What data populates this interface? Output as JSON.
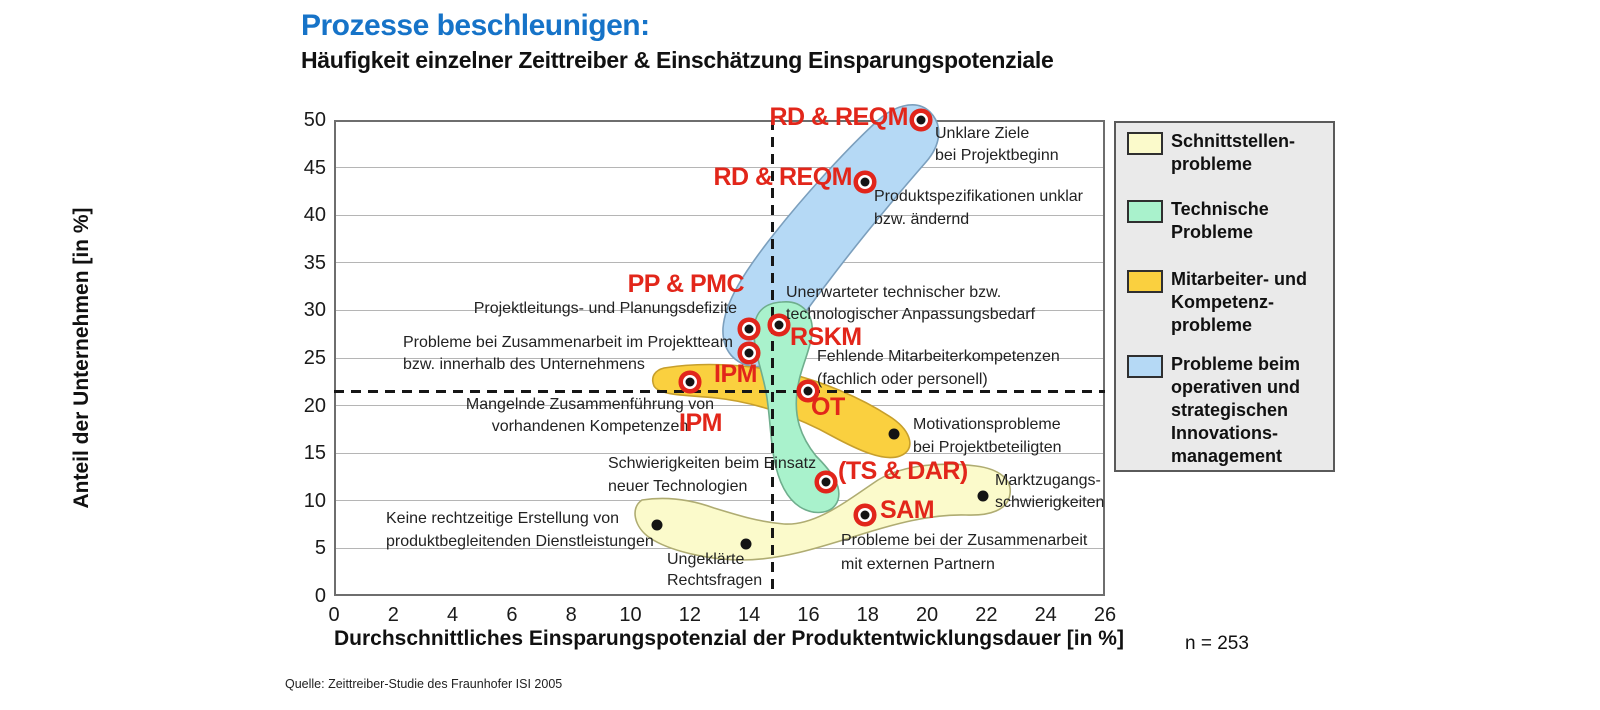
{
  "page": {
    "title_line1": "Prozesse beschleunigen:",
    "title_line2": "Häufigkeit einzelner Zeittreiber & Einschätzung Einsparungspotenziale",
    "sample_size": "n = 253",
    "source": "Quelle: Zeittreiber-Studie des Fraunhofer ISI 2005"
  },
  "colors": {
    "title_blue": "#1673c8",
    "label_red": "#e2261a",
    "marker_ring_red": "#e1251b",
    "grid": "#b5b5b5",
    "frame": "#6e6e6e",
    "dashed_line": "#161616",
    "legend_bg": "#eaeaea",
    "legend_border": "#5a5a5a"
  },
  "chart_data": {
    "type": "scatter",
    "title": "Häufigkeit einzelner Zeittreiber & Einschätzung Einsparungspotenziale",
    "xlabel": "Durchschnittliches Einsparungspotenzial der Produktentwicklungsdauer [in %]",
    "ylabel": "Anteil der Unternehmen [in %]",
    "xlim": [
      0,
      26
    ],
    "ylim": [
      0,
      50
    ],
    "xticks": [
      0,
      2,
      4,
      6,
      8,
      10,
      12,
      14,
      16,
      18,
      20,
      22,
      24,
      26
    ],
    "yticks": [
      0,
      5,
      10,
      15,
      20,
      25,
      30,
      35,
      40,
      45,
      50
    ],
    "grid": "horizontal-only",
    "legend_position": "right",
    "reference_lines": {
      "horizontal_y": 21.5,
      "vertical_x": 14.8,
      "style": "dashed"
    },
    "groups": [
      {
        "id": "schnittstellen",
        "label_lines": [
          "Schnittstellen-",
          "probleme"
        ],
        "fill": "#fbfacb",
        "stroke": "#afac72"
      },
      {
        "id": "technisch",
        "label_lines": [
          "Technische",
          "Probleme"
        ],
        "fill": "#a9f2cc",
        "stroke": "#6fae8d"
      },
      {
        "id": "kompetenz",
        "label_lines": [
          "Mitarbeiter- und",
          "Kompetenz-",
          "probleme"
        ],
        "fill": "#fad03f",
        "stroke": "#c79f2c"
      },
      {
        "id": "innovation",
        "label_lines": [
          "Probleme beim",
          "operativen und",
          "strategischen",
          "Innovations-",
          "management"
        ],
        "fill": "#b5d9f5",
        "stroke": "#7b9fbd"
      }
    ],
    "points": [
      {
        "id": "unklare_ziele",
        "x": 19.8,
        "y": 50,
        "group": "innovation",
        "marker": "ring",
        "cmmi": "RD & REQM",
        "text_lines": [
          "Unklare Ziele",
          "bei Projektbeginn"
        ]
      },
      {
        "id": "produktspez",
        "x": 17.9,
        "y": 43.5,
        "group": "innovation",
        "marker": "ring",
        "cmmi": "RD & REQM",
        "text_lines": [
          "Produktspezifikationen unklar",
          "bzw. ändernd"
        ]
      },
      {
        "id": "pp_pmc",
        "x": 14,
        "y": 28,
        "group": "innovation",
        "marker": "ring",
        "cmmi": "PP & PMC",
        "text_lines": [
          "Projektleitungs- und Planungsdefizite"
        ]
      },
      {
        "id": "rskm",
        "x": 15,
        "y": 28.5,
        "group": "technisch",
        "marker": "ring",
        "cmmi": "RSKM",
        "text_lines": [
          "Unerwarteter technischer bzw.",
          "technologischer Anpassungsbedarf"
        ]
      },
      {
        "id": "ipm_team",
        "x": 14,
        "y": 25.5,
        "group": "innovation",
        "marker": "ring",
        "cmmi": "IPM",
        "text_lines": [
          "Probleme bei Zusammenarbeit im Projektteam",
          "bzw. innerhalb des Unternehmens"
        ]
      },
      {
        "id": "ipm_kompetenzen",
        "x": 12,
        "y": 22.5,
        "group": "kompetenz",
        "marker": "ring",
        "cmmi": "IPM",
        "text_lines": [
          "Mangelnde Zusammenführung von",
          "vorhandenen Kompetenzen"
        ]
      },
      {
        "id": "ot",
        "x": 16,
        "y": 21.5,
        "group": "kompetenz",
        "marker": "ring",
        "cmmi": "OT",
        "text_lines": [
          "Fehlende Mitarbeiterkompetenzen",
          "(fachlich oder personell)"
        ]
      },
      {
        "id": "motivation",
        "x": 18.9,
        "y": 17,
        "group": "kompetenz",
        "marker": "dot",
        "cmmi": null,
        "text_lines": [
          "Motivationsprobleme",
          "bei Projektbeteiligten"
        ]
      },
      {
        "id": "ts_dar",
        "x": 16.6,
        "y": 12,
        "group": "technisch",
        "marker": "ring",
        "cmmi": "(TS & DAR)",
        "text_lines": [
          "Schwierigkeiten beim Einsatz",
          "neuer Technologien"
        ]
      },
      {
        "id": "sam",
        "x": 17.9,
        "y": 8.5,
        "group": "schnittstellen",
        "marker": "ring",
        "cmmi": "SAM",
        "text_lines": [
          "Probleme bei der Zusammenarbeit",
          "mit externen Partnern"
        ]
      },
      {
        "id": "marktzugang",
        "x": 21.9,
        "y": 10.5,
        "group": "schnittstellen",
        "marker": "dot",
        "cmmi": null,
        "text_lines": [
          "Marktzugangs-",
          "schwierigkeiten"
        ]
      },
      {
        "id": "dienstleistungen",
        "x": 10.9,
        "y": 7.5,
        "group": "schnittstellen",
        "marker": "dot",
        "cmmi": null,
        "text_lines": [
          "Keine rechtzeitige Erstellung von",
          "produktbegleitenden Dienstleistungen"
        ]
      },
      {
        "id": "rechtsfragen",
        "x": 13.9,
        "y": 5.5,
        "group": "schnittstellen",
        "marker": "dot",
        "cmmi": null,
        "text_lines": [
          "Ungeklärte",
          "Rechtsfragen"
        ]
      }
    ]
  }
}
